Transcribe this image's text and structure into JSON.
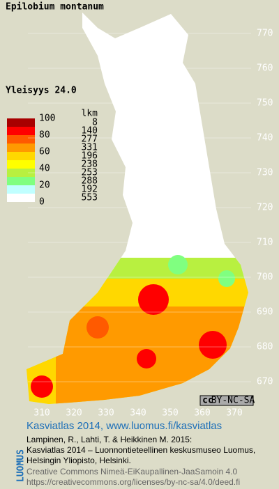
{
  "header": {
    "title": "Epilobium montanum",
    "frequency": "Yleisyys  24.0"
  },
  "legend": {
    "scale_labels": [
      100,
      80,
      60,
      40,
      20,
      0
    ],
    "count_header": "lkm",
    "counts": [
      8,
      140,
      277,
      331,
      196,
      238,
      253,
      288,
      192,
      553
    ],
    "colors": [
      "#a80000",
      "#ff0000",
      "#ff5a00",
      "#ff9a00",
      "#ffd800",
      "#ffff00",
      "#b8f040",
      "#80ff80",
      "#c0ffff",
      "#ffffff"
    ]
  },
  "axes": {
    "north": [
      770,
      760,
      750,
      740,
      730,
      720,
      710,
      700,
      690,
      680,
      670
    ],
    "east": [
      310,
      320,
      330,
      340,
      350,
      360,
      370
    ]
  },
  "license_badge": {
    "icon": "cc",
    "label": "BY-NC-SA"
  },
  "footer": {
    "logo": "LUOMUS",
    "heading": "Kasviatlas 2014, www.luomus.fi/kasviatlas",
    "citation": [
      "Lampinen, R., Lahti, T. & Heikkinen M. 2015:",
      "Kasviatlas 2014 – Luonnontieteellinen keskusmuseo Luomus,",
      "Helsingin Yliopisto, Helsinki."
    ],
    "license": [
      "Creative Commons Nimeä-EiKaupallinen-JaaSamoin 4.0",
      "https://creativecommons.org/licenses/by-nc-sa/4.0/deed.fi"
    ]
  }
}
